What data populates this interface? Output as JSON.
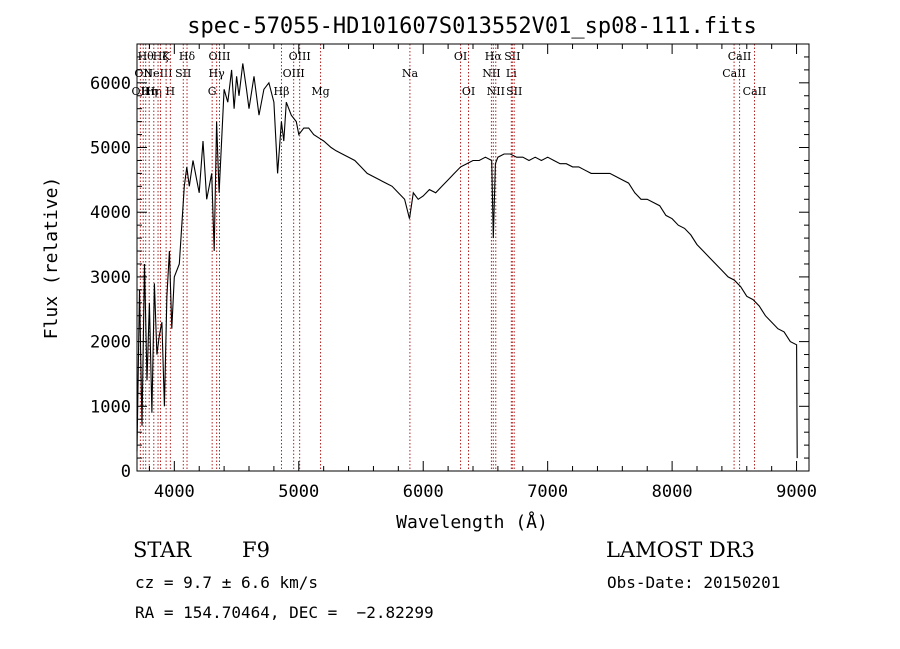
{
  "chart_data": {
    "type": "line",
    "title": "spec-57055-HD101607S013552V01_sp08-111.fits",
    "xlabel": "Wavelength (Å)",
    "ylabel": "Flux (relative)",
    "xlim": [
      3700,
      9100
    ],
    "ylim": [
      0,
      6600
    ],
    "x_ticks": [
      4000,
      5000,
      6000,
      7000,
      8000,
      9000
    ],
    "y_ticks": [
      0,
      1000,
      2000,
      3000,
      4000,
      5000,
      6000
    ],
    "line_color": "#000000",
    "marker_color": "#b22222",
    "grid": false,
    "series": [
      {
        "x": [
          3700,
          3720,
          3740,
          3760,
          3780,
          3800,
          3820,
          3840,
          3860,
          3880,
          3900,
          3920,
          3940,
          3960,
          3980,
          4000,
          4040,
          4080,
          4100,
          4120,
          4150,
          4180,
          4200,
          4230,
          4260,
          4300,
          4320,
          4340,
          4360,
          4400,
          4430,
          4460,
          4480,
          4500,
          4520,
          4550,
          4580,
          4600,
          4640,
          4680,
          4720,
          4760,
          4800,
          4830,
          4860,
          4880,
          4900,
          4940,
          4980,
          5000,
          5040,
          5080,
          5120,
          5160,
          5200,
          5260,
          5300,
          5350,
          5400,
          5450,
          5500,
          5550,
          5600,
          5650,
          5700,
          5750,
          5800,
          5850,
          5890,
          5920,
          5960,
          6000,
          6050,
          6100,
          6150,
          6200,
          6250,
          6300,
          6350,
          6400,
          6450,
          6500,
          6550,
          6563,
          6580,
          6600,
          6650,
          6700,
          6750,
          6800,
          6850,
          6900,
          6950,
          7000,
          7050,
          7100,
          7150,
          7200,
          7250,
          7300,
          7350,
          7400,
          7450,
          7500,
          7550,
          7600,
          7650,
          7700,
          7750,
          7800,
          7850,
          7900,
          7950,
          8000,
          8050,
          8100,
          8150,
          8200,
          8250,
          8300,
          8350,
          8400,
          8450,
          8500,
          8550,
          8600,
          8650,
          8700,
          8750,
          8800,
          8850,
          8900,
          8950,
          9000,
          9005
        ],
        "y": [
          300,
          2800,
          700,
          3200,
          1400,
          2600,
          900,
          2900,
          1800,
          2100,
          2300,
          1000,
          2700,
          3400,
          2200,
          3000,
          3200,
          4400,
          4700,
          4400,
          4800,
          4500,
          4300,
          5100,
          4200,
          4600,
          3400,
          5400,
          4300,
          5900,
          5700,
          6200,
          5600,
          6100,
          5800,
          6300,
          5900,
          5600,
          6100,
          5500,
          5900,
          6000,
          5700,
          4600,
          5400,
          5100,
          5700,
          5500,
          5400,
          5200,
          5300,
          5300,
          5200,
          5150,
          5100,
          5000,
          4950,
          4900,
          4850,
          4800,
          4700,
          4600,
          4550,
          4500,
          4450,
          4400,
          4300,
          4200,
          3900,
          4300,
          4200,
          4250,
          4350,
          4300,
          4400,
          4500,
          4600,
          4700,
          4750,
          4800,
          4800,
          4850,
          4800,
          3600,
          4750,
          4850,
          4900,
          4900,
          4850,
          4850,
          4800,
          4850,
          4800,
          4850,
          4800,
          4750,
          4750,
          4700,
          4700,
          4650,
          4600,
          4600,
          4600,
          4600,
          4550,
          4500,
          4450,
          4300,
          4200,
          4200,
          4150,
          4100,
          3950,
          3900,
          3800,
          3750,
          3650,
          3500,
          3400,
          3300,
          3200,
          3100,
          3000,
          2950,
          2850,
          2700,
          2650,
          2550,
          2400,
          2300,
          2200,
          2150,
          2000,
          1950,
          200
        ]
      }
    ],
    "line_markers": [
      {
        "wl": 3727,
        "label": "OII",
        "row": 2
      },
      {
        "wl": 3750,
        "label": "OII",
        "row": 1
      },
      {
        "wl": 3770,
        "label": "Hθ",
        "row": 0
      },
      {
        "wl": 3798,
        "label": "Hη",
        "row": 2
      },
      {
        "wl": 3835,
        "label": "Hη",
        "row": 2
      },
      {
        "wl": 3869,
        "label": "NeIII",
        "row": 1
      },
      {
        "wl": 3889,
        "label": "Hζ",
        "row": 0
      },
      {
        "wl": 3934,
        "label": "K",
        "row": 0
      },
      {
        "wl": 3968,
        "label": "H",
        "row": 2
      },
      {
        "wl": 4072,
        "label": "SII",
        "row": 1
      },
      {
        "wl": 4102,
        "label": "Hδ",
        "row": 0
      },
      {
        "wl": 4304,
        "label": "G",
        "row": 2
      },
      {
        "wl": 4340,
        "label": "Hγ",
        "row": 1
      },
      {
        "wl": 4363,
        "label": "OIII",
        "row": 0
      },
      {
        "wl": 4861,
        "label": "Hβ",
        "row": 2
      },
      {
        "wl": 4959,
        "label": "OIII",
        "row": 1
      },
      {
        "wl": 5007,
        "label": "OIII",
        "row": 0
      },
      {
        "wl": 5175,
        "label": "Mg",
        "row": 2
      },
      {
        "wl": 5893,
        "label": "Na",
        "row": 1
      },
      {
        "wl": 6300,
        "label": "OI",
        "row": 0
      },
      {
        "wl": 6364,
        "label": "OI",
        "row": 2
      },
      {
        "wl": 6548,
        "label": "NII",
        "row": 1
      },
      {
        "wl": 6563,
        "label": "Hα",
        "row": 0
      },
      {
        "wl": 6583,
        "label": "NII",
        "row": 2
      },
      {
        "wl": 6708,
        "label": "Li",
        "row": 1
      },
      {
        "wl": 6716,
        "label": "SII",
        "row": 0
      },
      {
        "wl": 6731,
        "label": "SII",
        "row": 2
      },
      {
        "wl": 8498,
        "label": "CaII",
        "row": 1
      },
      {
        "wl": 8542,
        "label": "CaII",
        "row": 0
      },
      {
        "wl": 8662,
        "label": "CaII",
        "row": 2
      }
    ]
  },
  "info": {
    "object_type": "STAR",
    "subclass": "F9",
    "survey": "LAMOST DR3",
    "cz": "cz = 9.7 ± 6.6 km/s",
    "obs_date": "Obs-Date: 20150201",
    "coords": "RA = 154.70464, DEC =  −2.82299"
  }
}
